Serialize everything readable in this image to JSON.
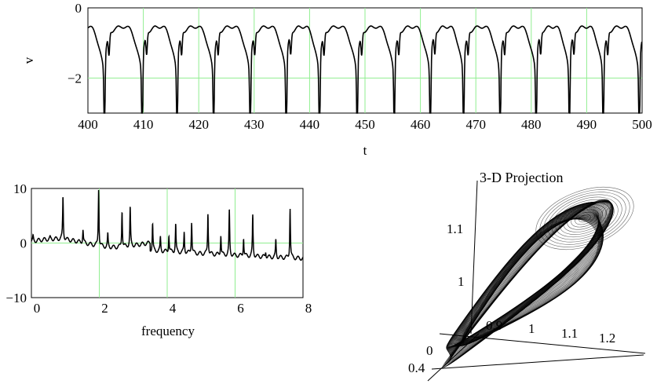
{
  "chart_data": [
    {
      "type": "line",
      "xlabel": "t",
      "ylabel": "v",
      "xlim": [
        400,
        500
      ],
      "ylim": [
        -3,
        0
      ],
      "x_ticks": [
        "400",
        "410",
        "420",
        "430",
        "440",
        "450",
        "460",
        "470",
        "480",
        "490",
        "500"
      ],
      "y_ticks": [
        "0",
        "−2"
      ],
      "grid": true,
      "grid_color": "#90ee90",
      "line_color": "#000000",
      "spike_times": [
        403.0,
        409.8,
        416.1,
        422.7,
        429.3,
        435.8,
        441.8,
        448.6,
        455.3,
        461.8,
        467.8,
        474.4,
        480.9,
        486.9,
        493.0,
        499.5
      ],
      "spike_depths": [
        -2.7,
        -2.95,
        -2.75,
        -2.55,
        -2.7,
        -2.8,
        -2.95,
        -2.75,
        -2.5,
        -2.75,
        -2.55,
        -2.85,
        -2.75,
        -2.55,
        -2.7,
        -2.95
      ],
      "plateau_value": -0.5
    },
    {
      "type": "line",
      "xlabel": "frequency",
      "ylabel": "",
      "xlim": [
        0,
        8
      ],
      "ylim": [
        -10,
        10
      ],
      "x_ticks": [
        "0",
        "2",
        "4",
        "6",
        "8"
      ],
      "y_ticks": [
        "10",
        "0",
        "−10"
      ],
      "grid": true,
      "grid_color": "#90ee90",
      "line_color": "#000000",
      "peaks": [
        {
          "x": 0.05,
          "y": 1.2
        },
        {
          "x": 0.55,
          "y": 1.0
        },
        {
          "x": 0.93,
          "y": 8.5
        },
        {
          "x": 1.52,
          "y": 2.5
        },
        {
          "x": 1.98,
          "y": 10.0
        },
        {
          "x": 2.25,
          "y": 1.5
        },
        {
          "x": 2.67,
          "y": 6.0
        },
        {
          "x": 2.91,
          "y": 6.5
        },
        {
          "x": 3.57,
          "y": 3.5
        },
        {
          "x": 3.8,
          "y": 1.0
        },
        {
          "x": 4.05,
          "y": 1.5
        },
        {
          "x": 4.25,
          "y": 3.5
        },
        {
          "x": 4.5,
          "y": 2.0
        },
        {
          "x": 4.72,
          "y": 4.0
        },
        {
          "x": 5.2,
          "y": 5.5
        },
        {
          "x": 5.58,
          "y": 1.5
        },
        {
          "x": 5.83,
          "y": 6.0
        },
        {
          "x": 6.25,
          "y": 1.0
        },
        {
          "x": 6.52,
          "y": 5.0
        },
        {
          "x": 6.9,
          "y": -1.5
        },
        {
          "x": 7.2,
          "y": 0.5
        },
        {
          "x": 7.62,
          "y": 6.5
        }
      ]
    },
    {
      "type": "scatter",
      "title": "3-D Projection",
      "axis_ticks": {
        "vertical": [
          "1",
          "1.1"
        ],
        "depth": [
          "0.9",
          "1",
          "1.1",
          "1.2"
        ],
        "origin": [
          "0",
          "0.4"
        ]
      },
      "attractor": "dense toroidal loop (limit set)"
    }
  ]
}
